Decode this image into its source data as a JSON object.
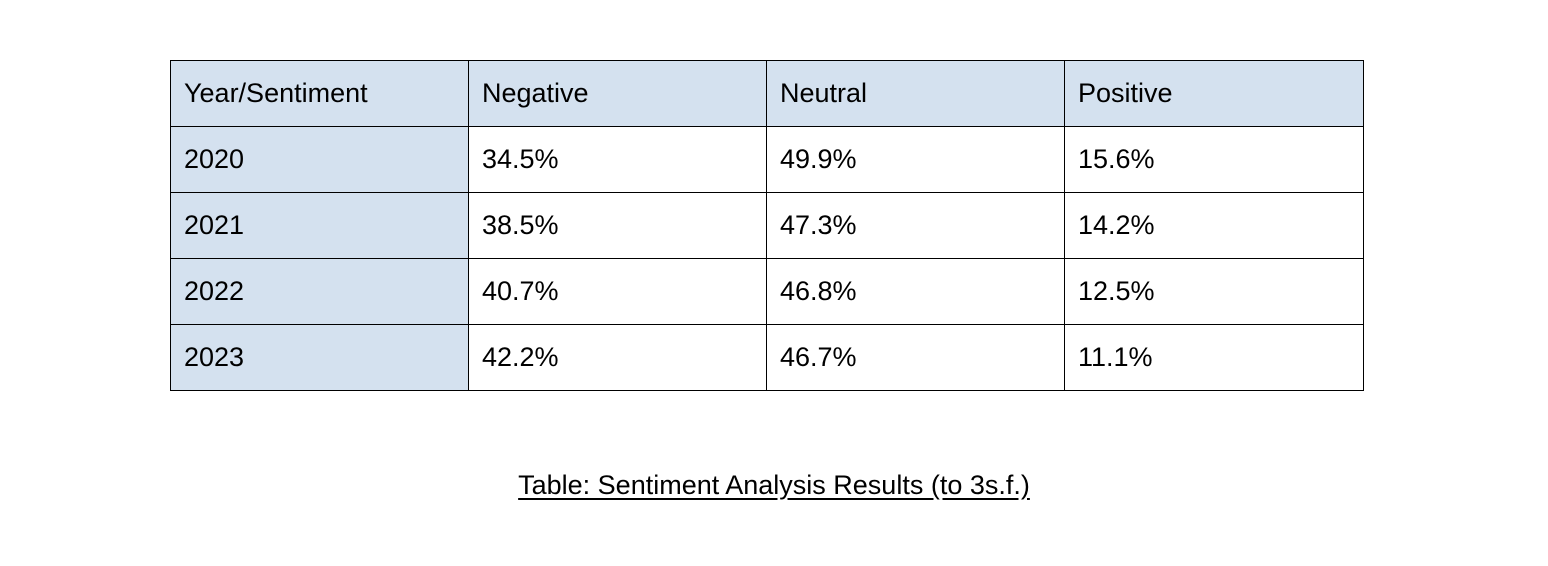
{
  "table": {
    "headers": [
      "Year/Sentiment",
      "Negative",
      "Neutral",
      "Positive"
    ],
    "rows": [
      {
        "year": "2020",
        "negative": "34.5%",
        "neutral": "49.9%",
        "positive": "15.6%"
      },
      {
        "year": "2021",
        "negative": "38.5%",
        "neutral": "47.3%",
        "positive": "14.2%"
      },
      {
        "year": "2022",
        "negative": "40.7%",
        "neutral": "46.8%",
        "positive": "12.5%"
      },
      {
        "year": "2023",
        "negative": "42.2%",
        "neutral": "46.7%",
        "positive": "11.1%"
      }
    ],
    "caption": "Table: Sentiment Analysis Results (to 3s.f.)"
  },
  "colors": {
    "header_fill": "#d4e1ef",
    "border": "#000000"
  }
}
